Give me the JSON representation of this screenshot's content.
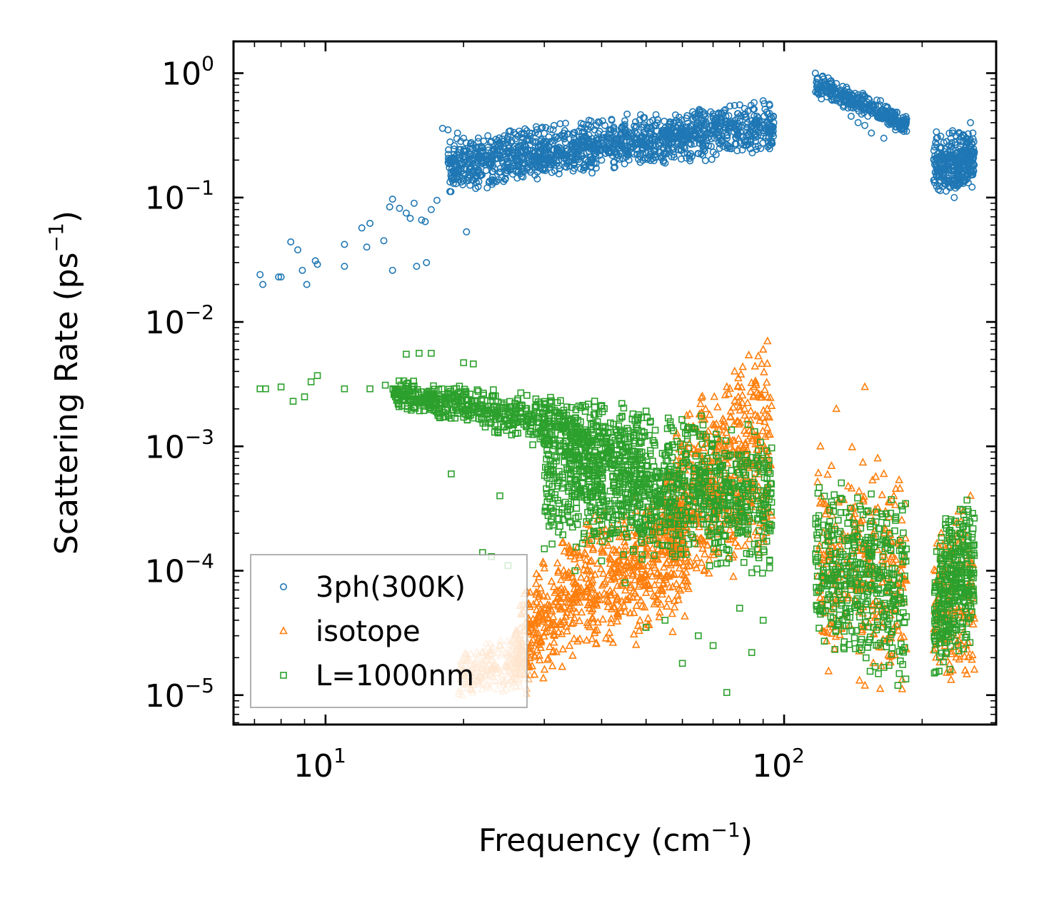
{
  "chart_data": {
    "type": "scatter",
    "x_scale": "log",
    "y_scale": "log",
    "xlim": [
      6.3,
      290
    ],
    "ylim": [
      5.8e-06,
      1.8
    ],
    "xlabel": "Frequency (cm",
    "xlabel_sup": "−1",
    "xlabel_end": ")",
    "ylabel": "Scattering Rate (ps",
    "ylabel_sup": "−1",
    "ylabel_end": ")",
    "x_ticks": [
      {
        "value": 10,
        "base": "10",
        "exp": "1"
      },
      {
        "value": 100,
        "base": "10",
        "exp": "2"
      }
    ],
    "y_ticks": [
      {
        "value": 1,
        "base": "10",
        "exp": "0"
      },
      {
        "value": 0.1,
        "base": "10",
        "exp": "−1"
      },
      {
        "value": 0.01,
        "base": "10",
        "exp": "−2"
      },
      {
        "value": 0.001,
        "base": "10",
        "exp": "−3"
      },
      {
        "value": 0.0001,
        "base": "10",
        "exp": "−4"
      },
      {
        "value": 1e-05,
        "base": "10",
        "exp": "−5"
      }
    ],
    "legend_position": "lower-left",
    "series": [
      {
        "name": "3ph(300K)",
        "marker": "circle",
        "color": "#1f77b4",
        "points": [
          [
            7.2,
            0.024
          ],
          [
            7.3,
            0.02
          ],
          [
            7.9,
            0.023
          ],
          [
            8.0,
            0.023
          ],
          [
            8.4,
            0.044
          ],
          [
            8.7,
            0.038
          ],
          [
            8.9,
            0.026
          ],
          [
            9.1,
            0.02
          ],
          [
            9.5,
            0.031
          ],
          [
            9.6,
            0.029
          ],
          [
            11.0,
            0.042
          ],
          [
            11.0,
            0.028
          ],
          [
            12.0,
            0.057
          ],
          [
            12.3,
            0.04
          ],
          [
            12.5,
            0.062
          ],
          [
            13.4,
            0.045
          ],
          [
            13.8,
            0.084
          ],
          [
            14.0,
            0.097
          ],
          [
            14.0,
            0.026
          ],
          [
            14.5,
            0.082
          ],
          [
            15.0,
            0.075
          ],
          [
            15.3,
            0.068
          ],
          [
            15.6,
            0.09
          ],
          [
            15.8,
            0.028
          ],
          [
            16.2,
            0.066
          ],
          [
            16.5,
            0.064
          ],
          [
            16.6,
            0.03
          ],
          [
            17.0,
            0.08
          ],
          [
            17.5,
            0.095
          ],
          [
            18.0,
            0.36
          ],
          [
            18.5,
            0.35
          ],
          [
            19.0,
            0.13
          ],
          [
            19.4,
            0.33
          ],
          [
            20.0,
            0.3
          ],
          [
            20.3,
            0.053
          ],
          [
            20.6,
            0.15
          ],
          [
            21.5,
            0.2
          ],
          [
            22.0,
            0.25
          ],
          [
            23.0,
            0.19
          ],
          [
            24.0,
            0.22
          ],
          [
            25.0,
            0.31
          ],
          [
            26.0,
            0.2
          ],
          [
            27.0,
            0.18
          ],
          [
            28.0,
            0.16
          ],
          [
            29.0,
            0.2
          ],
          [
            30.0,
            0.17
          ],
          [
            32.0,
            0.19
          ],
          [
            34.0,
            0.18
          ],
          [
            36.0,
            0.17
          ],
          [
            38.0,
            0.19
          ],
          [
            40.0,
            0.2
          ],
          [
            42.0,
            0.23
          ],
          [
            45.0,
            0.25
          ],
          [
            48.0,
            0.28
          ],
          [
            50.0,
            0.3
          ],
          [
            53.0,
            0.29
          ],
          [
            56.0,
            0.34
          ],
          [
            60.0,
            0.36
          ],
          [
            63.0,
            0.38
          ],
          [
            66.0,
            0.42
          ],
          [
            70.0,
            0.47
          ],
          [
            74.0,
            0.5
          ],
          [
            78.0,
            0.55
          ],
          [
            82.0,
            0.52
          ],
          [
            86.0,
            0.58
          ],
          [
            90.0,
            0.6
          ],
          [
            93.0,
            0.55
          ],
          [
            117.0,
            1.0
          ],
          [
            118.0,
            0.9
          ],
          [
            120.0,
            0.8
          ],
          [
            125.0,
            0.7
          ],
          [
            130.0,
            0.6
          ],
          [
            135.0,
            0.55
          ],
          [
            140.0,
            0.45
          ],
          [
            145.0,
            0.4
          ],
          [
            150.0,
            0.38
          ],
          [
            155.0,
            0.33
          ],
          [
            160.0,
            0.45
          ],
          [
            165.0,
            0.3
          ],
          [
            170.0,
            0.4
          ],
          [
            175.0,
            0.35
          ],
          [
            180.0,
            0.35
          ],
          [
            215.0,
            0.3
          ],
          [
            220.0,
            0.25
          ],
          [
            225.0,
            0.2
          ],
          [
            230.0,
            0.12
          ],
          [
            235.0,
            0.1
          ],
          [
            240.0,
            0.14
          ],
          [
            245.0,
            0.2
          ],
          [
            250.0,
            0.3
          ],
          [
            255.0,
            0.4
          ],
          [
            258.0,
            0.33
          ]
        ],
        "bands": [
          {
            "x": [
              18.5,
              95
            ],
            "lo": [
              0.1,
              0.22
            ],
            "hi": [
              0.3,
              0.62
            ],
            "n": 1400
          },
          {
            "x": [
              117,
              185
            ],
            "lo": [
              0.6,
              0.32
            ],
            "hi": [
              1.0,
              0.45
            ],
            "n": 320
          },
          {
            "x": [
              212,
              260
            ],
            "lo": [
              0.1,
              0.12
            ],
            "hi": [
              0.35,
              0.35
            ],
            "n": 320
          }
        ]
      },
      {
        "name": "isotope",
        "marker": "triangle",
        "color": "#ff7f0e",
        "points": [
          [
            20.0,
            1.5e-05
          ],
          [
            22.0,
            2.2e-05
          ],
          [
            24.0,
            2.5e-05
          ],
          [
            26.0,
            3e-05
          ],
          [
            28.0,
            3.5e-05
          ],
          [
            30.0,
            5e-05
          ],
          [
            32.0,
            6e-05
          ],
          [
            35.0,
            8e-05
          ],
          [
            38.0,
            0.00012
          ],
          [
            40.0,
            0.00015
          ],
          [
            45.0,
            0.0002
          ],
          [
            50.0,
            0.0003
          ],
          [
            55.0,
            0.0005
          ],
          [
            60.0,
            0.0007
          ],
          [
            65.0,
            0.001
          ],
          [
            70.0,
            0.0015
          ],
          [
            75.0,
            0.003
          ],
          [
            78.0,
            0.004
          ],
          [
            82.0,
            0.002
          ],
          [
            86.0,
            0.003
          ],
          [
            90.0,
            0.006
          ],
          [
            92.0,
            0.007
          ],
          [
            120.0,
            0.001
          ],
          [
            130.0,
            0.002
          ],
          [
            140.0,
            0.0003
          ],
          [
            150.0,
            0.003
          ],
          [
            160.0,
            0.0008
          ],
          [
            165.0,
            0.0006
          ],
          [
            170.0,
            0.0002
          ],
          [
            180.0,
            0.0001
          ],
          [
            220.0,
            0.0002
          ],
          [
            240.0,
            0.0003
          ],
          [
            255.0,
            0.0004
          ]
        ],
        "bands": [
          {
            "x": [
              19.5,
              28
            ],
            "lo": [
              9.5e-06,
              1e-05
            ],
            "hi": [
              2.2e-05,
              3.5e-05
            ],
            "n": 260,
            "light": true
          },
          {
            "x": [
              26,
              62
            ],
            "lo": [
              1e-05,
              3e-05
            ],
            "hi": [
              5e-05,
              0.0006
            ],
            "n": 700
          },
          {
            "x": [
              55,
              94
            ],
            "lo": [
              5e-05,
              0.0001
            ],
            "hi": [
              0.0008,
              0.007
            ],
            "n": 600
          },
          {
            "x": [
              118,
              185
            ],
            "lo": [
              1e-05,
              1e-05
            ],
            "hi": [
              0.0015,
              0.0008
            ],
            "n": 300
          },
          {
            "x": [
              212,
              260
            ],
            "lo": [
              1e-05,
              1e-05
            ],
            "hi": [
              0.0002,
              0.0004
            ],
            "n": 150
          }
        ]
      },
      {
        "name": "L=1000nm",
        "marker": "square",
        "color": "#2ca02c",
        "points": [
          [
            7.2,
            0.0029
          ],
          [
            7.4,
            0.0029
          ],
          [
            8.0,
            0.003
          ],
          [
            8.5,
            0.0023
          ],
          [
            9.0,
            0.0025
          ],
          [
            9.3,
            0.0033
          ],
          [
            9.6,
            0.0037
          ],
          [
            11.0,
            0.0029
          ],
          [
            12.5,
            0.0029
          ],
          [
            13.5,
            0.0031
          ],
          [
            14.2,
            0.0025
          ],
          [
            15.0,
            0.0055
          ],
          [
            16.0,
            0.0056
          ],
          [
            17.0,
            0.0056
          ],
          [
            18.0,
            0.0024
          ],
          [
            18.8,
            0.0006
          ],
          [
            20.0,
            0.0047
          ],
          [
            21.0,
            0.0046
          ],
          [
            22.0,
            0.00014
          ],
          [
            23.0,
            0.00013
          ],
          [
            24.0,
            0.0004
          ],
          [
            25.0,
            0.00011
          ],
          [
            30.0,
            0.00015
          ],
          [
            35.0,
            0.0001
          ],
          [
            40.0,
            0.00012
          ],
          [
            45.0,
            8e-05
          ],
          [
            50.0,
            3.5e-05
          ],
          [
            55.0,
            4e-05
          ],
          [
            60.0,
            1.8e-05
          ],
          [
            65.0,
            3e-05
          ],
          [
            70.0,
            2.5e-05
          ],
          [
            75.0,
            1.05e-05
          ],
          [
            80.0,
            5e-05
          ],
          [
            85.0,
            2.2e-05
          ],
          [
            90.0,
            4e-05
          ],
          [
            93.0,
            0.00012
          ]
        ],
        "bands": [
          {
            "x": [
              14,
              50
            ],
            "lo": [
              0.002,
              0.0001
            ],
            "hi": [
              0.0035,
              0.0022
            ],
            "n": 700
          },
          {
            "x": [
              30,
              94
            ],
            "lo": [
              0.00015,
              8e-05
            ],
            "hi": [
              0.0025,
              0.0016
            ],
            "n": 1100
          },
          {
            "x": [
              117,
              185
            ],
            "lo": [
              2e-05,
              1e-05
            ],
            "hi": [
              0.0006,
              0.0005
            ],
            "n": 420
          },
          {
            "x": [
              212,
              260
            ],
            "lo": [
              1e-05,
              2e-05
            ],
            "hi": [
              0.0002,
              0.0005
            ],
            "n": 320
          }
        ]
      }
    ]
  },
  "legend": {
    "items": [
      {
        "label": "3ph(300K)",
        "color": "#1f77b4",
        "marker": "circle"
      },
      {
        "label": "isotope",
        "color": "#ff7f0e",
        "marker": "triangle"
      },
      {
        "label": "L=1000nm",
        "color": "#2ca02c",
        "marker": "square"
      }
    ]
  }
}
